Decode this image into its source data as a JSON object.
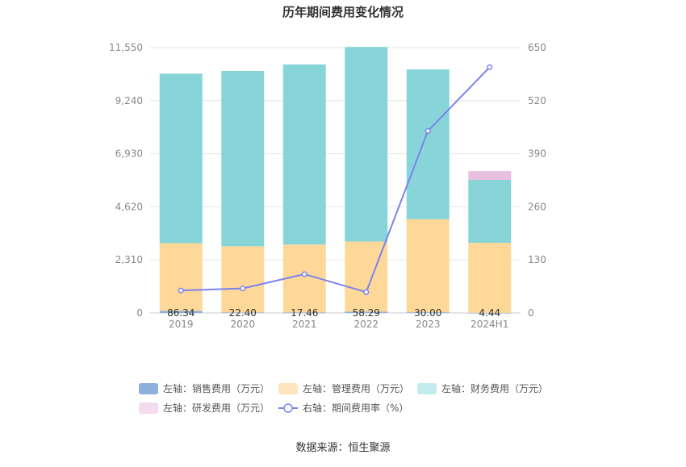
{
  "source_note": "数据来源：恒生聚源",
  "chart_data": {
    "type": "bar",
    "title": "历年期间费用变化情况",
    "categories": [
      "2019",
      "2020",
      "2021",
      "2022",
      "2023",
      "2024H1"
    ],
    "left_axis": {
      "min": 0,
      "max": 11550,
      "ticks": [
        "0",
        "2,310",
        "4,620",
        "6,930",
        "9,240",
        "11,550"
      ]
    },
    "right_axis": {
      "min": 0,
      "max": 650,
      "ticks": [
        "0",
        "130",
        "260",
        "390",
        "520",
        "650"
      ]
    },
    "series": [
      {
        "name": "左轴：销售费用（万元）",
        "axis": "left",
        "kind": "bar",
        "color": "#8eb0dc",
        "values": [
          86.34,
          22.4,
          17.46,
          58.29,
          30.0,
          4.44
        ],
        "labels": [
          "86.34",
          "22.40",
          "17.46",
          "58.29",
          "30.00",
          "4.44"
        ]
      },
      {
        "name": "左轴：管理费用（万元）",
        "axis": "left",
        "kind": "bar",
        "color": "#fed899",
        "values": [
          2950,
          2880,
          2960,
          3050,
          4050,
          3050
        ]
      },
      {
        "name": "左轴：财务费用（万元）",
        "axis": "left",
        "kind": "bar",
        "color": "#87d5d9",
        "values": [
          7380,
          7630,
          7840,
          8470,
          6520,
          2740
        ]
      },
      {
        "name": "左轴：研发费用（万元）",
        "axis": "left",
        "kind": "bar",
        "color": "#e9bfdf",
        "values": [
          0,
          0,
          0,
          0,
          0,
          380
        ]
      },
      {
        "name": "右轴：期间费用率（%）",
        "axis": "right",
        "kind": "line",
        "color": "#7b83ee",
        "values": [
          55,
          60,
          95,
          51,
          446,
          602
        ]
      }
    ],
    "legend": [
      {
        "label": "左轴：销售费用（万元）",
        "color": "#8eb0dc",
        "type": "box"
      },
      {
        "label": "左轴：管理费用（万元）",
        "color": "#fee5be",
        "type": "box"
      },
      {
        "label": "左轴：财务费用（万元）",
        "color": "#c2ecee",
        "type": "box"
      },
      {
        "label": "左轴：研发费用（万元）",
        "color": "#f4dcef",
        "type": "box"
      },
      {
        "label": "右轴：期间费用率（%）",
        "color": "#7b83ee",
        "type": "line"
      }
    ]
  }
}
